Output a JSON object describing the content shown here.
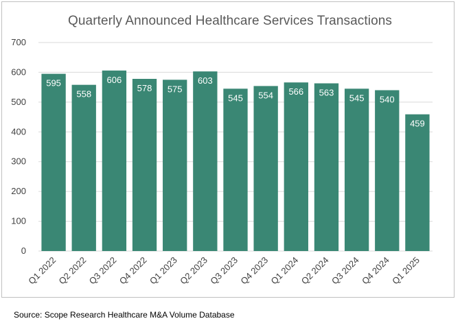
{
  "source": "Source: Scope Research Healthcare M&A Volume Database",
  "chart_data": {
    "type": "bar",
    "title": "Quarterly Announced Healthcare Services Transactions",
    "xlabel": "",
    "ylabel": "",
    "categories": [
      "Q1 2022",
      "Q2 2022",
      "Q3 2022",
      "Q4 2022",
      "Q1 2023",
      "Q2 2023",
      "Q3 2023",
      "Q4 2023",
      "Q1 2024",
      "Q2 2024",
      "Q3 2024",
      "Q4 2024",
      "Q1 2025"
    ],
    "values": [
      595,
      558,
      606,
      578,
      575,
      603,
      545,
      554,
      566,
      563,
      545,
      540,
      459
    ],
    "ylim": [
      0,
      700
    ],
    "yticks": [
      0,
      100,
      200,
      300,
      400,
      500,
      600,
      700
    ],
    "grid": true,
    "legend": "none",
    "bar_color": "#3a8774",
    "grid_color": "#d9d9d9",
    "data_labels": "inside-end"
  }
}
